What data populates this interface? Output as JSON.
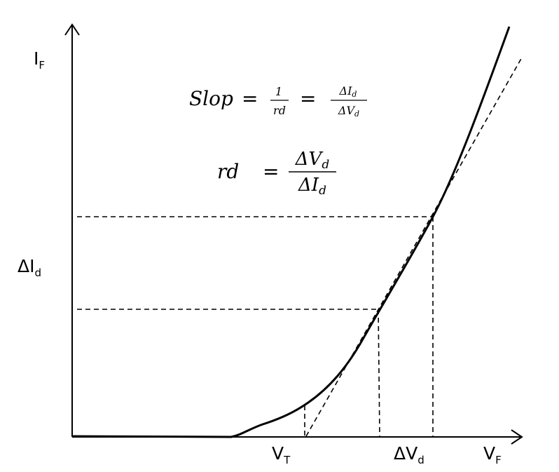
{
  "axes": {
    "y_label": {
      "main": "I",
      "sub": "F"
    },
    "x_label": {
      "main": "V",
      "sub": "F"
    }
  },
  "labels": {
    "threshold": {
      "main": "V",
      "sub": "T"
    },
    "delta_i": {
      "main": "ΔI",
      "sub": "d"
    },
    "delta_v": {
      "main": "ΔV",
      "sub": "d"
    }
  },
  "formulas": {
    "slope": {
      "lhs": "Slop",
      "eq1": "=",
      "frac1": {
        "num": "1",
        "den": "rd"
      },
      "eq2": "=",
      "frac2": {
        "num": {
          "main": "ΔI",
          "sub": "d"
        },
        "den": {
          "main": "ΔV",
          "sub": "d"
        }
      }
    },
    "resistance": {
      "lhs": "rd",
      "eq": "=",
      "frac": {
        "num": {
          "main": "ΔV",
          "sub": "d"
        },
        "den": {
          "main": "ΔI",
          "sub": "d"
        }
      }
    }
  }
}
